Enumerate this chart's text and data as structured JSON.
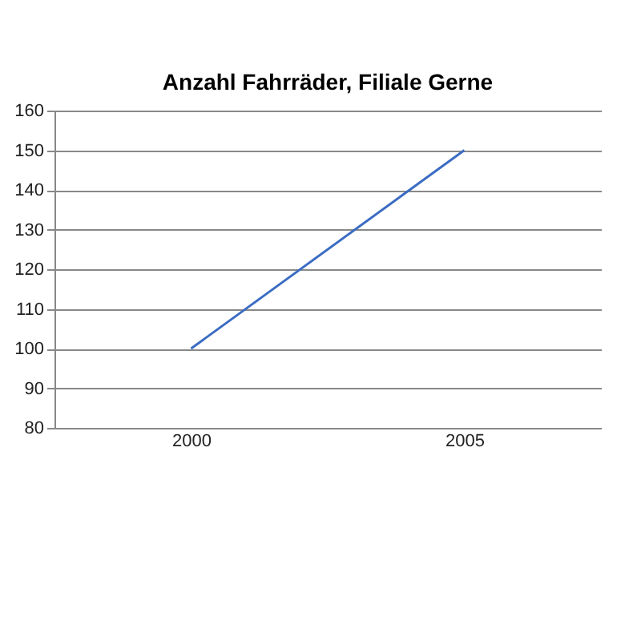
{
  "chart_data": {
    "type": "line",
    "title": "Anzahl Fahrräder, Filiale Gerne",
    "categories": [
      "2000",
      "2005"
    ],
    "series": [
      {
        "color": "#3b6cc2",
        "values": [
          100,
          150
        ]
      }
    ],
    "ylim": [
      80,
      160
    ],
    "yticks": [
      80,
      90,
      100,
      110,
      120,
      130,
      140,
      150,
      160
    ],
    "grid": "y",
    "marker": "none",
    "line_style": "solid"
  }
}
